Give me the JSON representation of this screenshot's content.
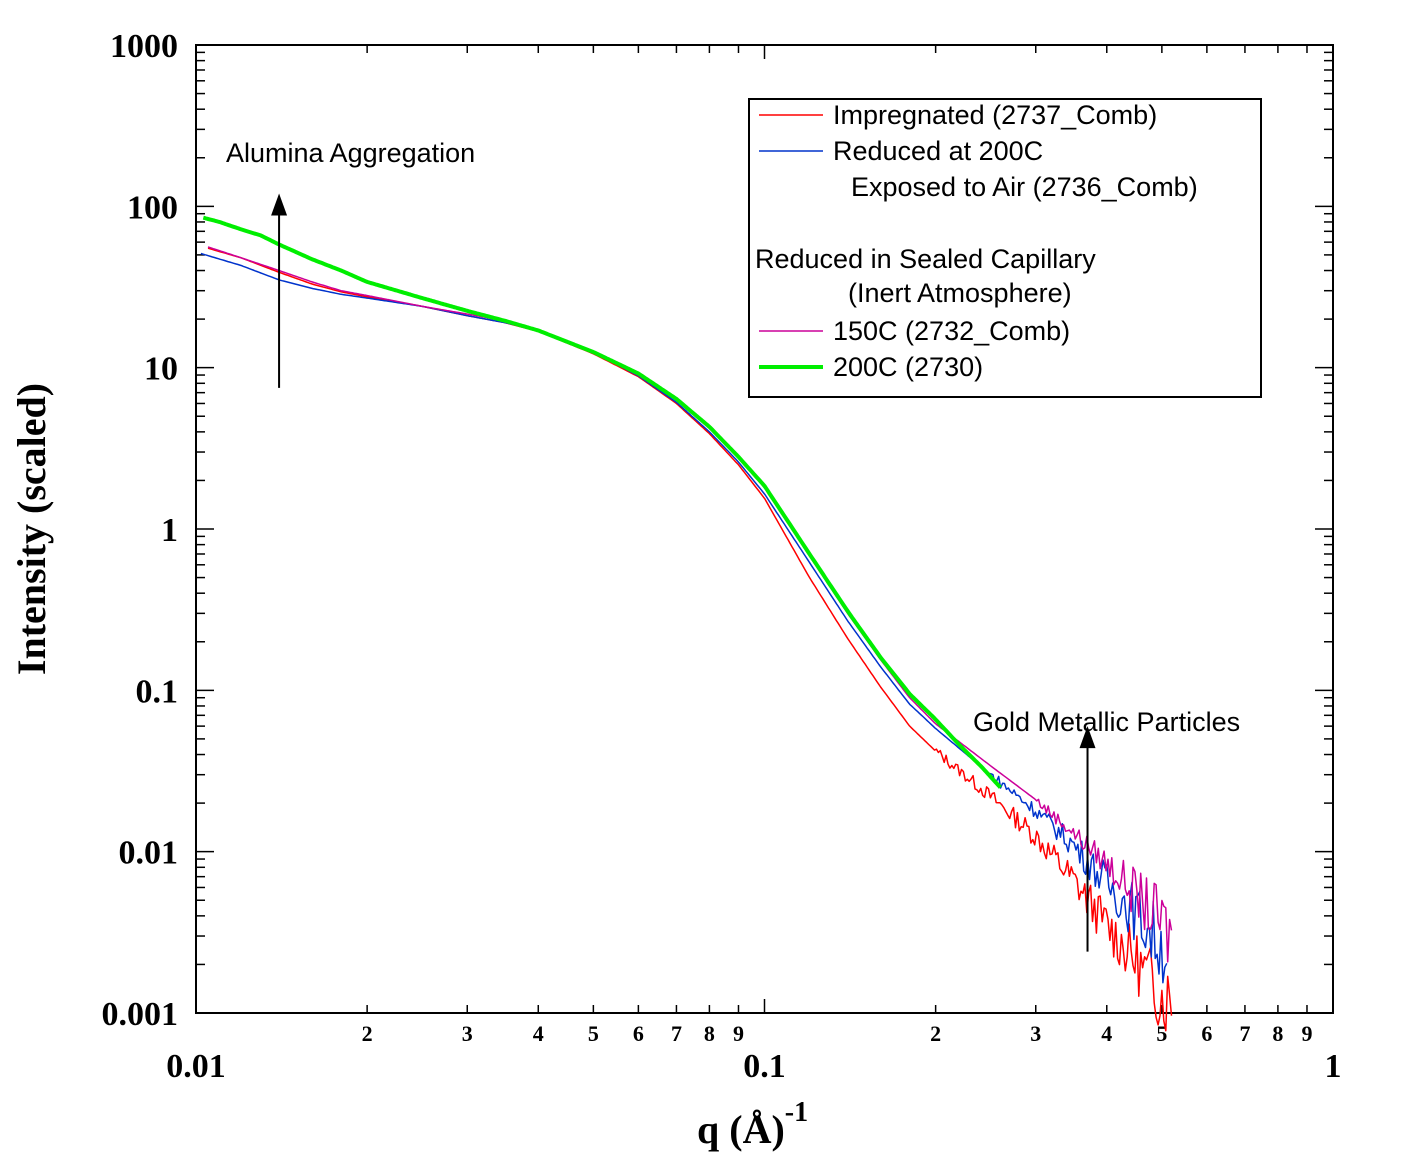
{
  "chart_data": {
    "type": "line",
    "xscale": "log",
    "yscale": "log",
    "xlim": [
      0.01,
      1
    ],
    "ylim": [
      0.001,
      1000
    ],
    "xlabel": "q (Å)",
    "xlabel_superscript": "-1",
    "ylabel": "Intensity (scaled)",
    "x_major_ticks": [
      {
        "value": 0.01,
        "label": "0.01"
      },
      {
        "value": 0.1,
        "label": "0.1"
      },
      {
        "value": 1,
        "label": "1"
      }
    ],
    "x_minor_labels": [
      "2",
      "3",
      "4",
      "5",
      "6",
      "7",
      "8",
      "9",
      "2",
      "3",
      "4",
      "5",
      "6",
      "7",
      "8",
      "9"
    ],
    "y_major_ticks": [
      {
        "value": 0.001,
        "label": "0.001"
      },
      {
        "value": 0.01,
        "label": "0.01"
      },
      {
        "value": 0.1,
        "label": "0.1"
      },
      {
        "value": 1,
        "label": "1"
      },
      {
        "value": 10,
        "label": "10"
      },
      {
        "value": 100,
        "label": "100"
      },
      {
        "value": 1000,
        "label": "1000"
      }
    ],
    "legend": {
      "placement": "top-right",
      "entries": [
        {
          "series": 0,
          "text": "Impregnated (2737_Comb)"
        },
        {
          "series": 1,
          "text": "Reduced at 200C"
        },
        {
          "series": -1,
          "text": "Exposed to Air (2736_Comb)"
        },
        {
          "series": -1,
          "text": "Reduced in Sealed Capillary"
        },
        {
          "series": -1,
          "text": "(Inert Atmosphere)"
        },
        {
          "series": 2,
          "text": "150C (2732_Comb)"
        },
        {
          "series": 3,
          "text": "200C (2730)"
        }
      ]
    },
    "annotations": [
      {
        "text": "Alumina Aggregation",
        "arrow_x": 0.014,
        "arrow_y_from": 7.5,
        "arrow_y_to": 120
      },
      {
        "text": "Gold Metallic Particles",
        "arrow_x": 0.37,
        "arrow_y_from": 0.0024,
        "arrow_y_to": 0.06
      }
    ],
    "series": [
      {
        "name": "Impregnated (2737_Comb)",
        "color": "#ff0000",
        "width": 1.5,
        "noise_start": 0.2,
        "x": [
          0.0105,
          0.012,
          0.014,
          0.016,
          0.018,
          0.02,
          0.025,
          0.03,
          0.035,
          0.04,
          0.05,
          0.06,
          0.07,
          0.08,
          0.09,
          0.1,
          0.12,
          0.14,
          0.16,
          0.18,
          0.2,
          0.25,
          0.3,
          0.35,
          0.4,
          0.45,
          0.5,
          0.52
        ],
        "values": [
          55,
          48,
          39,
          33,
          29.5,
          27.5,
          24,
          21,
          19,
          16.8,
          12.2,
          8.8,
          6,
          3.9,
          2.5,
          1.55,
          0.5,
          0.21,
          0.105,
          0.06,
          0.042,
          0.022,
          0.0125,
          0.0066,
          0.0035,
          0.0021,
          0.0013,
          0.0012
        ]
      },
      {
        "name": "Reduced at 200C Exposed to Air (2736_Comb)",
        "color": "#0033cc",
        "width": 1.5,
        "noise_start": 0.25,
        "x": [
          0.0102,
          0.012,
          0.014,
          0.016,
          0.018,
          0.02,
          0.025,
          0.03,
          0.035,
          0.04,
          0.05,
          0.06,
          0.07,
          0.08,
          0.09,
          0.1,
          0.12,
          0.14,
          0.16,
          0.18,
          0.2,
          0.25,
          0.3,
          0.35,
          0.4,
          0.45,
          0.5,
          0.51
        ],
        "values": [
          51,
          43,
          35,
          31,
          28.5,
          27,
          24,
          21,
          19,
          17,
          12.5,
          8.9,
          6.1,
          4,
          2.6,
          1.65,
          0.62,
          0.27,
          0.14,
          0.082,
          0.058,
          0.03,
          0.018,
          0.011,
          0.0064,
          0.0042,
          0.0026,
          0.0025
        ]
      },
      {
        "name": "150C (2732_Comb)",
        "color": "#cc0099",
        "width": 1.5,
        "noise_start": 0.3,
        "x": [
          0.0105,
          0.012,
          0.014,
          0.016,
          0.018,
          0.02,
          0.025,
          0.03,
          0.035,
          0.04,
          0.05,
          0.06,
          0.07,
          0.08,
          0.09,
          0.1,
          0.12,
          0.14,
          0.16,
          0.18,
          0.2,
          0.25,
          0.3,
          0.35,
          0.4,
          0.45,
          0.5,
          0.52
        ],
        "values": [
          56,
          48,
          40,
          34,
          30,
          28,
          24,
          21.5,
          19.5,
          17,
          12.5,
          9,
          6.3,
          4.2,
          2.8,
          1.8,
          0.68,
          0.3,
          0.155,
          0.09,
          0.062,
          0.034,
          0.021,
          0.013,
          0.0085,
          0.0055,
          0.0036,
          0.0029
        ]
      },
      {
        "name": "200C (2730)",
        "color": "#00ee00",
        "width": 4,
        "noise_start": 10,
        "x": [
          0.0103,
          0.011,
          0.012,
          0.013,
          0.014,
          0.016,
          0.018,
          0.02,
          0.025,
          0.03,
          0.035,
          0.04,
          0.05,
          0.06,
          0.07,
          0.08,
          0.09,
          0.1,
          0.12,
          0.14,
          0.16,
          0.18,
          0.2,
          0.22,
          0.24,
          0.26
        ],
        "values": [
          85,
          80,
          72,
          66,
          58,
          47,
          40,
          34,
          27,
          22.5,
          19.5,
          17,
          12.5,
          9.2,
          6.4,
          4.3,
          2.8,
          1.85,
          0.7,
          0.31,
          0.16,
          0.095,
          0.066,
          0.046,
          0.034,
          0.025
        ]
      }
    ]
  }
}
